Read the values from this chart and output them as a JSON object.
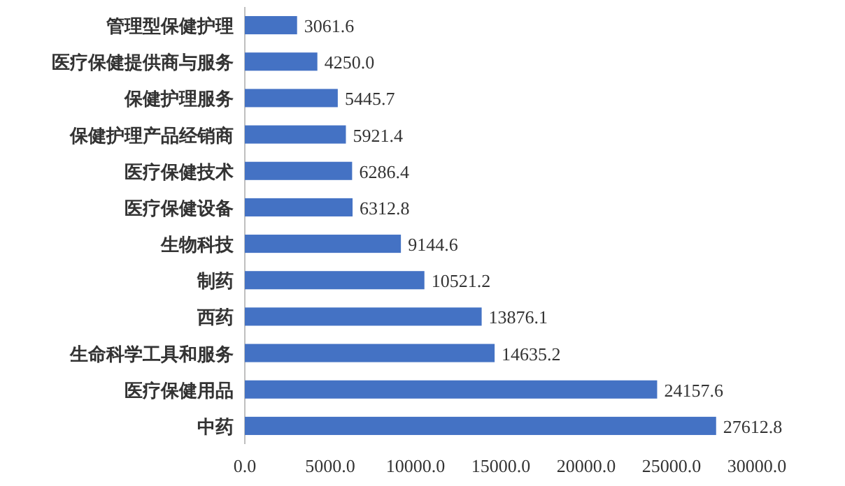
{
  "chart_data": {
    "type": "bar",
    "orientation": "horizontal",
    "categories": [
      "管理型保健护理",
      "医疗保健提供商与服务",
      "保健护理服务",
      "保健护理产品经销商",
      "医疗保健技术",
      "医疗保健设备",
      "生物科技",
      "制药",
      "西药",
      "生命科学工具和服务",
      "医疗保健用品",
      "中药"
    ],
    "values": [
      3061.6,
      4250.0,
      5445.7,
      5921.4,
      6286.4,
      6312.8,
      9144.6,
      10521.2,
      13876.1,
      14635.2,
      24157.6,
      27612.8
    ],
    "value_labels": [
      "3061.6",
      "4250.0",
      "5445.7",
      "5921.4",
      "6286.4",
      "6312.8",
      "9144.6",
      "10521.2",
      "13876.1",
      "14635.2",
      "24157.6",
      "27612.8"
    ],
    "color": "#4472c4",
    "xlim": [
      0,
      30000
    ],
    "xticks": [
      {
        "value": 0,
        "label": "0.0"
      },
      {
        "value": 5000,
        "label": "5000.0"
      },
      {
        "value": 10000,
        "label": "10000.0"
      },
      {
        "value": 15000,
        "label": "15000.0"
      },
      {
        "value": 20000,
        "label": "20000.0"
      },
      {
        "value": 25000,
        "label": "25000.0"
      },
      {
        "value": 30000,
        "label": "30000.0"
      }
    ],
    "grid": false
  }
}
